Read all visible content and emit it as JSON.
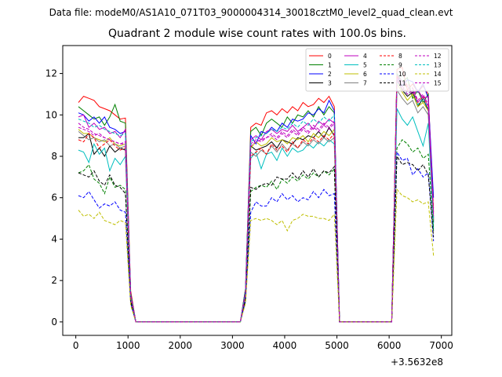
{
  "figure": {
    "suptitle": "Data file: modeM0/AS1A10_071T03_9000004314_30018cztM0_level2_quad_clean.evt",
    "x_offset_label": "+3.5632e8"
  },
  "chart_data": {
    "type": "line",
    "title": "Quadrant 2 module wise count rates with 100.0s bins.",
    "xlabel": "",
    "ylabel": "",
    "xlim": [
      -250,
      7200
    ],
    "ylim": [
      -0.65,
      13.35
    ],
    "x_ticks": [
      0,
      1000,
      2000,
      3000,
      4000,
      5000,
      6000,
      7000
    ],
    "y_ticks": [
      0,
      2,
      4,
      6,
      8,
      10,
      12
    ],
    "x_offset": 356320000,
    "grid": false,
    "legend": {
      "placement": "top-right",
      "columns": 4
    },
    "x": [
      50,
      150,
      250,
      350,
      450,
      550,
      650,
      750,
      850,
      950,
      1050,
      1150,
      1250,
      1350,
      1450,
      1550,
      1650,
      1750,
      1850,
      1950,
      2050,
      2150,
      2250,
      2350,
      2450,
      2550,
      2650,
      2750,
      2850,
      2950,
      3050,
      3150,
      3250,
      3350,
      3450,
      3550,
      3650,
      3750,
      3850,
      3950,
      4050,
      4150,
      4250,
      4350,
      4450,
      4550,
      4650,
      4750,
      4850,
      4950,
      5050,
      5150,
      5250,
      5350,
      5450,
      5550,
      5650,
      5750,
      5850,
      5950,
      6050,
      6150,
      6250,
      6350,
      6450,
      6550,
      6650,
      6750,
      6850
    ],
    "series": [
      {
        "name": "0",
        "color": "#ff0000",
        "dash": "solid",
        "values": [
          10.6,
          10.9,
          10.8,
          10.7,
          10.4,
          10.3,
          10.2,
          10.0,
          9.8,
          9.85,
          1.5,
          0.0,
          0,
          0,
          0,
          0,
          0,
          0,
          0,
          0,
          0,
          0,
          0,
          0,
          0,
          0,
          0,
          0,
          0,
          0,
          0,
          0.0,
          1.6,
          9.4,
          9.6,
          9.5,
          10.1,
          10.2,
          10.0,
          10.3,
          10.1,
          10.4,
          10.2,
          10.6,
          10.4,
          10.5,
          10.8,
          10.6,
          10.9,
          10.4,
          0.0,
          0,
          0,
          0,
          0,
          0,
          0,
          0,
          0,
          0,
          0.0,
          12.2,
          12.3,
          11.2,
          11.5,
          11.1,
          11.4,
          11.0,
          5.3
        ]
      },
      {
        "name": "1",
        "color": "#008000",
        "dash": "solid",
        "values": [
          10.4,
          10.2,
          10.0,
          9.8,
          9.9,
          9.5,
          9.9,
          10.5,
          9.7,
          9.6,
          1.4,
          0.0,
          0,
          0,
          0,
          0,
          0,
          0,
          0,
          0,
          0,
          0,
          0,
          0,
          0,
          0,
          0,
          0,
          0,
          0,
          0,
          0.0,
          1.6,
          9.2,
          9.4,
          9.0,
          9.6,
          9.8,
          9.6,
          9.4,
          9.9,
          9.6,
          10.0,
          9.9,
          10.2,
          9.9,
          10.4,
          10.0,
          10.4,
          10.1,
          0.0,
          0,
          0,
          0,
          0,
          0,
          0,
          0,
          0,
          0,
          0.0,
          12.0,
          11.6,
          11.8,
          10.8,
          11.2,
          10.6,
          11.0,
          4.9
        ]
      },
      {
        "name": "2",
        "color": "#0000ff",
        "dash": "solid",
        "values": [
          10.1,
          10.0,
          9.7,
          9.9,
          9.6,
          9.9,
          9.4,
          9.3,
          9.1,
          9.2,
          1.3,
          0.0,
          0,
          0,
          0,
          0,
          0,
          0,
          0,
          0,
          0,
          0,
          0,
          0,
          0,
          0,
          0,
          0,
          0,
          0,
          0,
          0.0,
          1.5,
          9.0,
          8.6,
          9.2,
          9.1,
          9.4,
          9.2,
          9.6,
          9.4,
          9.8,
          9.7,
          9.8,
          10.1,
          10.0,
          10.3,
          10.1,
          10.7,
          10.2,
          0.0,
          0,
          0,
          0,
          0,
          0,
          0,
          0,
          0,
          0,
          0.0,
          11.9,
          11.4,
          11.7,
          11.6,
          11.1,
          11.5,
          10.8,
          6.0
        ]
      },
      {
        "name": "3",
        "color": "#000000",
        "dash": "solid",
        "values": [
          8.9,
          8.9,
          9.1,
          8.1,
          8.4,
          8.0,
          8.5,
          8.2,
          8.4,
          8.3,
          1.2,
          0.0,
          0,
          0,
          0,
          0,
          0,
          0,
          0,
          0,
          0,
          0,
          0,
          0,
          0,
          0,
          0,
          0,
          0,
          0,
          0,
          0.0,
          1.3,
          8.5,
          8.3,
          8.4,
          8.5,
          8.7,
          8.4,
          8.8,
          8.7,
          8.6,
          8.9,
          8.8,
          9.0,
          8.9,
          9.2,
          8.9,
          9.4,
          9.0,
          0.0,
          0,
          0,
          0,
          0,
          0,
          0,
          0,
          0,
          0,
          0.0,
          11.7,
          11.2,
          10.9,
          11.1,
          10.4,
          10.8,
          10.2,
          4.8
        ]
      },
      {
        "name": "4",
        "color": "#bf00bf",
        "dash": "solid",
        "values": [
          9.9,
          10.0,
          9.4,
          9.6,
          9.3,
          9.4,
          9.1,
          9.2,
          8.9,
          9.3,
          1.3,
          0.0,
          0,
          0,
          0,
          0,
          0,
          0,
          0,
          0,
          0,
          0,
          0,
          0,
          0,
          0,
          0,
          0,
          0,
          0,
          0,
          0.0,
          1.4,
          8.8,
          9.0,
          8.8,
          9.2,
          9.3,
          9.1,
          9.3,
          9.2,
          9.5,
          9.2,
          9.4,
          9.6,
          9.3,
          9.7,
          9.5,
          9.8,
          9.6,
          0.0,
          0,
          0,
          0,
          0,
          0,
          0,
          0,
          0,
          0,
          0.0,
          11.9,
          11.6,
          11.4,
          11.0,
          11.2,
          10.8,
          10.9,
          5.0
        ]
      },
      {
        "name": "5",
        "color": "#00bfbf",
        "dash": "solid",
        "values": [
          8.3,
          8.2,
          7.7,
          8.6,
          8.1,
          8.4,
          7.3,
          7.9,
          7.6,
          8.0,
          1.2,
          0.0,
          0,
          0,
          0,
          0,
          0,
          0,
          0,
          0,
          0,
          0,
          0,
          0,
          0,
          0,
          0,
          0,
          0,
          0,
          0,
          0.0,
          1.3,
          7.9,
          8.2,
          7.4,
          8.1,
          8.2,
          7.8,
          8.4,
          8.0,
          8.4,
          8.2,
          8.3,
          8.6,
          8.4,
          8.7,
          8.5,
          8.8,
          8.6,
          0.0,
          0,
          0,
          0,
          0,
          0,
          0,
          0,
          0,
          0,
          0.0,
          10.3,
          9.8,
          9.5,
          9.9,
          9.2,
          8.5,
          9.6,
          4.5
        ]
      },
      {
        "name": "6",
        "color": "#bfbf00",
        "dash": "solid",
        "values": [
          9.3,
          9.1,
          9.1,
          8.9,
          8.8,
          8.7,
          8.9,
          8.6,
          8.5,
          8.6,
          1.2,
          0.0,
          0,
          0,
          0,
          0,
          0,
          0,
          0,
          0,
          0,
          0,
          0,
          0,
          0,
          0,
          0,
          0,
          0,
          0,
          0,
          0.0,
          1.4,
          8.4,
          8.7,
          8.5,
          8.6,
          8.9,
          8.7,
          8.8,
          8.6,
          8.9,
          8.8,
          9.0,
          8.7,
          9.1,
          8.9,
          9.2,
          9.0,
          9.3,
          0.0,
          0,
          0,
          0,
          0,
          0,
          0,
          0,
          0,
          0,
          0.0,
          11.5,
          11.1,
          10.7,
          11.0,
          10.4,
          10.6,
          10.2,
          5.1
        ]
      },
      {
        "name": "7",
        "color": "#808080",
        "dash": "solid",
        "values": [
          9.2,
          9.0,
          8.8,
          8.9,
          8.7,
          8.8,
          8.5,
          8.6,
          8.4,
          8.5,
          1.2,
          0.0,
          0,
          0,
          0,
          0,
          0,
          0,
          0,
          0,
          0,
          0,
          0,
          0,
          0,
          0,
          0,
          0,
          0,
          0,
          0,
          0.0,
          1.3,
          8.2,
          8.0,
          8.3,
          8.1,
          8.5,
          8.2,
          8.6,
          8.3,
          8.6,
          8.4,
          8.7,
          8.5,
          8.8,
          8.6,
          8.9,
          8.7,
          8.9,
          0.0,
          0,
          0,
          0,
          0,
          0,
          0,
          0,
          0,
          0,
          0.0,
          11.2,
          10.8,
          10.5,
          10.7,
          10.1,
          10.4,
          10.0,
          4.9
        ]
      },
      {
        "name": "8",
        "color": "#ff0000",
        "dash": "dashed",
        "values": [
          8.8,
          8.7,
          9.1,
          8.9,
          8.4,
          8.6,
          8.8,
          8.5,
          8.3,
          8.4,
          1.2,
          0.0,
          0,
          0,
          0,
          0,
          0,
          0,
          0,
          0,
          0,
          0,
          0,
          0,
          0,
          0,
          0,
          0,
          0,
          0,
          0,
          0.0,
          1.3,
          8.0,
          8.2,
          8.4,
          8.1,
          8.6,
          8.3,
          8.5,
          8.2,
          8.7,
          8.4,
          8.8,
          8.6,
          8.9,
          8.7,
          9.0,
          8.8,
          9.1,
          0.0,
          0,
          0,
          0,
          0,
          0,
          0,
          0,
          0,
          0,
          0.0,
          11.9,
          11.2,
          11.5,
          11.3,
          10.6,
          10.9,
          10.4,
          5.5
        ]
      },
      {
        "name": "9",
        "color": "#008000",
        "dash": "dashed",
        "values": [
          7.2,
          7.3,
          7.6,
          6.9,
          6.7,
          6.2,
          7.0,
          6.5,
          6.6,
          6.4,
          1.0,
          0.0,
          0,
          0,
          0,
          0,
          0,
          0,
          0,
          0,
          0,
          0,
          0,
          0,
          0,
          0,
          0,
          0,
          0,
          0,
          0,
          0.0,
          1.1,
          6.3,
          6.5,
          6.6,
          6.5,
          6.8,
          6.4,
          6.9,
          6.7,
          7.0,
          6.8,
          7.1,
          6.9,
          7.2,
          7.0,
          7.3,
          7.1,
          7.4,
          0.0,
          0,
          0,
          0,
          0,
          0,
          0,
          0,
          0,
          0,
          0.0,
          8.4,
          8.8,
          8.6,
          8.2,
          8.4,
          7.9,
          8.1,
          4.4
        ]
      },
      {
        "name": "10",
        "color": "#0000ff",
        "dash": "dashed",
        "values": [
          6.1,
          6.0,
          6.3,
          5.9,
          5.5,
          5.7,
          5.6,
          5.8,
          5.4,
          5.3,
          0.9,
          0.0,
          0,
          0,
          0,
          0,
          0,
          0,
          0,
          0,
          0,
          0,
          0,
          0,
          0,
          0,
          0,
          0,
          0,
          0,
          0,
          0.0,
          1.0,
          5.3,
          5.8,
          5.6,
          5.6,
          6.0,
          5.8,
          6.2,
          5.9,
          6.1,
          5.8,
          6.0,
          5.9,
          6.3,
          6.0,
          6.4,
          6.1,
          6.2,
          0.0,
          0,
          0,
          0,
          0,
          0,
          0,
          0,
          0,
          0,
          0.0,
          8.2,
          7.8,
          7.9,
          7.1,
          7.4,
          7.0,
          7.2,
          3.9
        ]
      },
      {
        "name": "11",
        "color": "#000000",
        "dash": "dashed",
        "values": [
          7.2,
          7.1,
          7.0,
          7.3,
          6.8,
          6.6,
          7.1,
          6.6,
          6.5,
          6.2,
          1.0,
          0.0,
          0,
          0,
          0,
          0,
          0,
          0,
          0,
          0,
          0,
          0,
          0,
          0,
          0,
          0,
          0,
          0,
          0,
          0,
          0,
          0.0,
          1.1,
          6.5,
          6.4,
          6.6,
          6.7,
          6.6,
          7.0,
          6.9,
          6.9,
          7.2,
          6.9,
          7.3,
          7.0,
          7.4,
          7.0,
          7.3,
          7.2,
          7.5,
          0.0,
          0,
          0,
          0,
          0,
          0,
          0,
          0,
          0,
          0,
          0.0,
          8.0,
          7.6,
          7.7,
          7.6,
          7.3,
          7.6,
          7.1,
          4.1
        ]
      },
      {
        "name": "12",
        "color": "#bf00bf",
        "dash": "dashed",
        "values": [
          9.6,
          9.4,
          9.3,
          9.1,
          9.0,
          8.9,
          8.8,
          8.7,
          8.6,
          8.6,
          1.3,
          0.0,
          0,
          0,
          0,
          0,
          0,
          0,
          0,
          0,
          0,
          0,
          0,
          0,
          0,
          0,
          0,
          0,
          0,
          0,
          0,
          0.0,
          1.4,
          8.6,
          8.8,
          8.7,
          8.9,
          9.1,
          8.9,
          9.2,
          9.0,
          9.3,
          9.1,
          9.4,
          9.2,
          9.5,
          9.3,
          9.6,
          9.4,
          9.7,
          0.0,
          0,
          0,
          0,
          0,
          0,
          0,
          0,
          0,
          0,
          0.0,
          11.8,
          11.4,
          11.1,
          11.3,
          10.7,
          11.0,
          10.5,
          5.2
        ]
      },
      {
        "name": "13",
        "color": "#00bfbf",
        "dash": "dashed",
        "values": [
          9.8,
          9.7,
          9.6,
          9.4,
          9.5,
          9.3,
          9.2,
          9.1,
          9.0,
          9.1,
          1.3,
          0.0,
          0,
          0,
          0,
          0,
          0,
          0,
          0,
          0,
          0,
          0,
          0,
          0,
          0,
          0,
          0,
          0,
          0,
          0,
          0,
          0.0,
          1.4,
          8.7,
          8.9,
          9.0,
          9.1,
          9.3,
          9.2,
          9.4,
          9.3,
          9.6,
          9.4,
          9.7,
          9.5,
          9.8,
          9.6,
          9.9,
          9.7,
          10.0,
          0.0,
          0,
          0,
          0,
          0,
          0,
          0,
          0,
          0,
          0,
          0.0,
          11.6,
          11.3,
          11.0,
          11.2,
          10.5,
          10.8,
          10.3,
          5.0
        ]
      },
      {
        "name": "14",
        "color": "#bfbf00",
        "dash": "dashed",
        "values": [
          5.4,
          5.1,
          5.2,
          5.0,
          5.3,
          4.9,
          4.8,
          4.7,
          4.9,
          4.8,
          0.8,
          0.0,
          0,
          0,
          0,
          0,
          0,
          0,
          0,
          0,
          0,
          0,
          0,
          0,
          0,
          0,
          0,
          0,
          0,
          0,
          0,
          0.0,
          0.9,
          4.9,
          5.0,
          4.9,
          5.0,
          4.9,
          4.7,
          4.9,
          4.4,
          4.9,
          5.0,
          5.2,
          5.1,
          5.1,
          5.0,
          5.0,
          4.9,
          5.2,
          0.0,
          0,
          0,
          0,
          0,
          0,
          0,
          0,
          0,
          0,
          0.0,
          6.4,
          6.1,
          6.0,
          5.8,
          5.9,
          5.7,
          5.8,
          3.2
        ]
      },
      {
        "name": "15",
        "color": "#bf00bf",
        "dash": "dashed",
        "values": [
          9.4,
          9.3,
          9.2,
          9.0,
          9.1,
          8.9,
          8.8,
          8.7,
          8.6,
          8.7,
          1.3,
          0.0,
          0,
          0,
          0,
          0,
          0,
          0,
          0,
          0,
          0,
          0,
          0,
          0,
          0,
          0,
          0,
          0,
          0,
          0,
          0,
          0.0,
          1.4,
          8.5,
          8.7,
          8.8,
          8.9,
          9.0,
          8.8,
          9.1,
          8.9,
          9.2,
          9.0,
          9.3,
          9.1,
          9.4,
          9.2,
          9.5,
          9.3,
          9.6,
          0.0,
          0,
          0,
          0,
          0,
          0,
          0,
          0,
          0,
          0,
          0.0,
          11.7,
          11.3,
          11.0,
          11.2,
          10.6,
          10.9,
          10.4,
          5.1
        ]
      }
    ]
  }
}
